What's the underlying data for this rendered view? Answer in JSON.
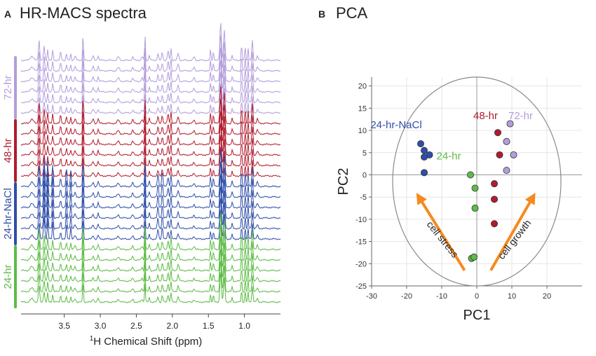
{
  "panel_a": {
    "letter": "A",
    "title": "HR-MACS spectra",
    "xaxis_superscript": "1",
    "xaxis_label": "H Chemical Shift (ppm)",
    "ticks": [
      "3.5",
      "3.0",
      "2.5",
      "2.0",
      "1.5",
      "1.0"
    ],
    "groups": [
      {
        "name": "72-hr",
        "color": "#b39ddb"
      },
      {
        "name": "48-hr",
        "color": "#b01c2e"
      },
      {
        "name": "24-hr-NaCl",
        "color": "#2f4ea8"
      },
      {
        "name": "24-hr",
        "color": "#5dbb46"
      }
    ]
  },
  "panel_b": {
    "letter": "B",
    "title": "PCA",
    "annotation_stress": "cell stress",
    "annotation_growth": "cell growth",
    "arrow_color": "#f58a1f"
  },
  "chart_data": [
    {
      "type": "line",
      "title": "HR-MACS spectra",
      "xlabel": "1H Chemical Shift (ppm)",
      "ylabel": "",
      "x_ticks": [
        3.5,
        3.0,
        2.5,
        2.0,
        1.5,
        1.0
      ],
      "xlim": [
        4.1,
        0.5
      ],
      "series": [
        {
          "name": "72-hr",
          "replicates": 6,
          "color": "#b39ddb"
        },
        {
          "name": "48-hr",
          "replicates": 6,
          "color": "#b01c2e"
        },
        {
          "name": "24-hr-NaCl",
          "replicates": 6,
          "color": "#2f4ea8"
        },
        {
          "name": "24-hr",
          "replicates": 6,
          "color": "#5dbb46"
        }
      ]
    },
    {
      "type": "scatter",
      "title": "PCA",
      "xlabel": "PC1",
      "ylabel": "PC2",
      "xlim": [
        -30,
        30
      ],
      "ylim": [
        -25,
        22
      ],
      "x_ticks": [
        -30,
        -20,
        -10,
        0,
        10,
        20
      ],
      "y_ticks": [
        -25,
        -20,
        -15,
        -10,
        -5,
        0,
        5,
        10,
        15,
        20
      ],
      "series": [
        {
          "name": "24-hr-NaCl",
          "color": "#2f4ea8",
          "points": [
            [
              -16,
              7
            ],
            [
              -15,
              5.5
            ],
            [
              -13.5,
              4.5
            ],
            [
              -15,
              4
            ],
            [
              -15,
              0.5
            ]
          ]
        },
        {
          "name": "24-hr",
          "color": "#5dbb46",
          "points": [
            [
              -1.8,
              0
            ],
            [
              -0.5,
              -3
            ],
            [
              -0.5,
              -7.5
            ],
            [
              -1.5,
              -18.8
            ],
            [
              -0.8,
              -18.5
            ]
          ]
        },
        {
          "name": "48-hr",
          "color": "#b01c2e",
          "points": [
            [
              6,
              9.5
            ],
            [
              6.5,
              4.5
            ],
            [
              5,
              -2
            ],
            [
              5,
              -5.5
            ],
            [
              5,
              -11
            ]
          ]
        },
        {
          "name": "72-hr",
          "color": "#b39ddb",
          "points": [
            [
              9.5,
              11.5
            ],
            [
              8.5,
              7.5
            ],
            [
              10.5,
              4.5
            ],
            [
              8.5,
              1
            ]
          ]
        }
      ],
      "annotations": [
        "cell stress",
        "cell growth"
      ]
    }
  ]
}
